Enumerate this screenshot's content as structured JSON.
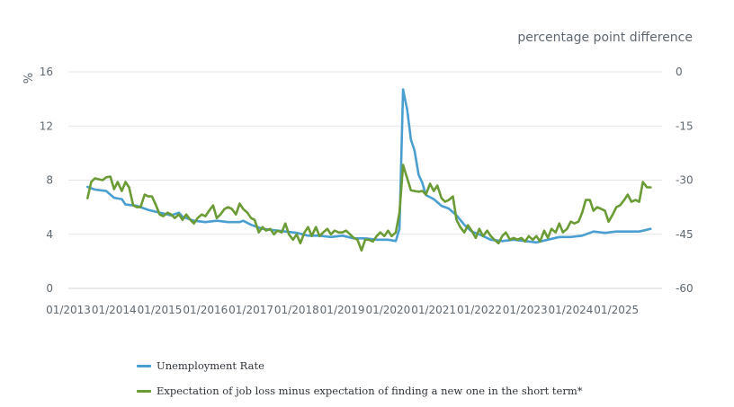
{
  "chart_data": {
    "type": "line",
    "title": "",
    "left_axis": {
      "label": "%",
      "min": 0,
      "max": 16,
      "ticks": [
        0,
        4,
        8,
        12,
        16
      ]
    },
    "right_axis": {
      "label": "percentage point difference",
      "min": -60,
      "max": 0,
      "ticks": [
        0,
        -15,
        -30,
        -45,
        -60
      ]
    },
    "x_axis": {
      "start": 2013.0,
      "end": 2026.0,
      "tick_positions": [
        2013,
        2014,
        2015,
        2016,
        2017,
        2018,
        2019,
        2020,
        2021,
        2022,
        2023,
        2024,
        2025
      ],
      "tick_labels": [
        "01/2013",
        "01/2014",
        "01/2015",
        "01/2016",
        "01/2017",
        "01/2018",
        "01/2019",
        "01/2020",
        "01/2021",
        "01/2022",
        "01/2023",
        "01/2024",
        "01/2025"
      ]
    },
    "series": [
      {
        "name": "Unemployment Rate",
        "axis": "left",
        "color": "#4a9fd0",
        "points": [
          [
            2013.42,
            7.5
          ],
          [
            2013.58,
            7.3
          ],
          [
            2013.83,
            7.2
          ],
          [
            2014.0,
            6.7
          ],
          [
            2014.17,
            6.6
          ],
          [
            2014.25,
            6.2
          ],
          [
            2014.5,
            6.1
          ],
          [
            2014.75,
            5.8
          ],
          [
            2015.0,
            5.6
          ],
          [
            2015.25,
            5.4
          ],
          [
            2015.42,
            5.6
          ],
          [
            2015.5,
            5.3
          ],
          [
            2015.75,
            5.0
          ],
          [
            2016.0,
            4.9
          ],
          [
            2016.25,
            5.0
          ],
          [
            2016.5,
            4.9
          ],
          [
            2016.75,
            4.9
          ],
          [
            2016.83,
            5.0
          ],
          [
            2017.0,
            4.7
          ],
          [
            2017.25,
            4.4
          ],
          [
            2017.5,
            4.3
          ],
          [
            2017.75,
            4.2
          ],
          [
            2018.0,
            4.1
          ],
          [
            2018.25,
            3.9
          ],
          [
            2018.5,
            3.9
          ],
          [
            2018.75,
            3.8
          ],
          [
            2019.0,
            3.9
          ],
          [
            2019.25,
            3.7
          ],
          [
            2019.5,
            3.7
          ],
          [
            2019.75,
            3.6
          ],
          [
            2020.0,
            3.6
          ],
          [
            2020.17,
            3.5
          ],
          [
            2020.25,
            4.4
          ],
          [
            2020.33,
            14.7
          ],
          [
            2020.42,
            13.2
          ],
          [
            2020.5,
            11.0
          ],
          [
            2020.58,
            10.2
          ],
          [
            2020.67,
            8.4
          ],
          [
            2020.75,
            7.8
          ],
          [
            2020.83,
            6.9
          ],
          [
            2021.0,
            6.6
          ],
          [
            2021.17,
            6.1
          ],
          [
            2021.33,
            5.9
          ],
          [
            2021.5,
            5.4
          ],
          [
            2021.67,
            4.7
          ],
          [
            2021.83,
            4.2
          ],
          [
            2022.0,
            4.0
          ],
          [
            2022.25,
            3.6
          ],
          [
            2022.5,
            3.5
          ],
          [
            2022.75,
            3.6
          ],
          [
            2023.0,
            3.5
          ],
          [
            2023.25,
            3.4
          ],
          [
            2023.5,
            3.6
          ],
          [
            2023.75,
            3.8
          ],
          [
            2024.0,
            3.8
          ],
          [
            2024.25,
            3.9
          ],
          [
            2024.5,
            4.2
          ],
          [
            2024.75,
            4.1
          ],
          [
            2025.0,
            4.2
          ],
          [
            2025.25,
            4.2
          ],
          [
            2025.5,
            4.2
          ],
          [
            2025.75,
            4.4
          ]
        ]
      },
      {
        "name": "Expectation of job loss minus expectation of finding a new one in the short term*",
        "axis": "right",
        "color": "#6a9b34",
        "points": [
          [
            2013.42,
            -35
          ],
          [
            2013.5,
            -30.5
          ],
          [
            2013.58,
            -29.5
          ],
          [
            2013.75,
            -30
          ],
          [
            2013.83,
            -29.2
          ],
          [
            2013.92,
            -29
          ],
          [
            2014.0,
            -32.5
          ],
          [
            2014.08,
            -30.5
          ],
          [
            2014.17,
            -33
          ],
          [
            2014.25,
            -30.5
          ],
          [
            2014.33,
            -32
          ],
          [
            2014.42,
            -37
          ],
          [
            2014.5,
            -37.5
          ],
          [
            2014.58,
            -37.5
          ],
          [
            2014.67,
            -34
          ],
          [
            2014.75,
            -34.5
          ],
          [
            2014.83,
            -34.5
          ],
          [
            2014.92,
            -37
          ],
          [
            2015.0,
            -39.5
          ],
          [
            2015.08,
            -40
          ],
          [
            2015.17,
            -39
          ],
          [
            2015.25,
            -39.5
          ],
          [
            2015.33,
            -40.5
          ],
          [
            2015.42,
            -39.5
          ],
          [
            2015.5,
            -41
          ],
          [
            2015.58,
            -39.5
          ],
          [
            2015.67,
            -41
          ],
          [
            2015.75,
            -42
          ],
          [
            2015.83,
            -40.5
          ],
          [
            2015.92,
            -39.5
          ],
          [
            2016.0,
            -40
          ],
          [
            2016.08,
            -38.5
          ],
          [
            2016.17,
            -37
          ],
          [
            2016.25,
            -40.5
          ],
          [
            2016.33,
            -39.5
          ],
          [
            2016.42,
            -38
          ],
          [
            2016.5,
            -37.5
          ],
          [
            2016.58,
            -38
          ],
          [
            2016.67,
            -39.5
          ],
          [
            2016.75,
            -36.5
          ],
          [
            2016.83,
            -38
          ],
          [
            2016.92,
            -39
          ],
          [
            2017.0,
            -40.5
          ],
          [
            2017.08,
            -41
          ],
          [
            2017.17,
            -44.5
          ],
          [
            2017.25,
            -43
          ],
          [
            2017.33,
            -44
          ],
          [
            2017.42,
            -43.5
          ],
          [
            2017.5,
            -45
          ],
          [
            2017.58,
            -44
          ],
          [
            2017.67,
            -44.5
          ],
          [
            2017.75,
            -42
          ],
          [
            2017.83,
            -45
          ],
          [
            2017.92,
            -46.5
          ],
          [
            2018.0,
            -45
          ],
          [
            2018.08,
            -47.5
          ],
          [
            2018.17,
            -44.5
          ],
          [
            2018.25,
            -43
          ],
          [
            2018.33,
            -45.5
          ],
          [
            2018.42,
            -43
          ],
          [
            2018.5,
            -45.5
          ],
          [
            2018.58,
            -44.5
          ],
          [
            2018.67,
            -43.5
          ],
          [
            2018.75,
            -45
          ],
          [
            2018.83,
            -44
          ],
          [
            2018.92,
            -44.5
          ],
          [
            2019.0,
            -44.5
          ],
          [
            2019.08,
            -44
          ],
          [
            2019.17,
            -45
          ],
          [
            2019.25,
            -46
          ],
          [
            2019.33,
            -46.5
          ],
          [
            2019.42,
            -49.5
          ],
          [
            2019.5,
            -46.5
          ],
          [
            2019.58,
            -46.5
          ],
          [
            2019.67,
            -47
          ],
          [
            2019.75,
            -45.5
          ],
          [
            2019.83,
            -44.5
          ],
          [
            2019.92,
            -45.5
          ],
          [
            2020.0,
            -44
          ],
          [
            2020.08,
            -45.5
          ],
          [
            2020.17,
            -44.5
          ],
          [
            2020.25,
            -39
          ],
          [
            2020.33,
            -25.8
          ],
          [
            2020.42,
            -29.5
          ],
          [
            2020.5,
            -32.8
          ],
          [
            2020.58,
            -33
          ],
          [
            2020.67,
            -33.2
          ],
          [
            2020.75,
            -33
          ],
          [
            2020.83,
            -34
          ],
          [
            2020.92,
            -31
          ],
          [
            2021.0,
            -33
          ],
          [
            2021.08,
            -31.5
          ],
          [
            2021.17,
            -35
          ],
          [
            2021.25,
            -36
          ],
          [
            2021.33,
            -35.5
          ],
          [
            2021.42,
            -34.5
          ],
          [
            2021.5,
            -41
          ],
          [
            2021.58,
            -43
          ],
          [
            2021.67,
            -44.5
          ],
          [
            2021.75,
            -42.5
          ],
          [
            2021.83,
            -44
          ],
          [
            2021.92,
            -46
          ],
          [
            2022.0,
            -43.5
          ],
          [
            2022.08,
            -45.5
          ],
          [
            2022.17,
            -44
          ],
          [
            2022.25,
            -45.5
          ],
          [
            2022.33,
            -46.5
          ],
          [
            2022.42,
            -47.5
          ],
          [
            2022.5,
            -45.5
          ],
          [
            2022.58,
            -44.5
          ],
          [
            2022.67,
            -46.5
          ],
          [
            2022.75,
            -46
          ],
          [
            2022.83,
            -46.5
          ],
          [
            2022.92,
            -46
          ],
          [
            2023.0,
            -47
          ],
          [
            2023.08,
            -45.5
          ],
          [
            2023.17,
            -46.5
          ],
          [
            2023.25,
            -45.5
          ],
          [
            2023.33,
            -47
          ],
          [
            2023.42,
            -44
          ],
          [
            2023.5,
            -46
          ],
          [
            2023.58,
            -43.5
          ],
          [
            2023.67,
            -44.5
          ],
          [
            2023.75,
            -42
          ],
          [
            2023.83,
            -44.5
          ],
          [
            2023.92,
            -43.5
          ],
          [
            2024.0,
            -41.5
          ],
          [
            2024.08,
            -42
          ],
          [
            2024.17,
            -41.5
          ],
          [
            2024.25,
            -39
          ],
          [
            2024.33,
            -35.5
          ],
          [
            2024.42,
            -35.5
          ],
          [
            2024.5,
            -38.5
          ],
          [
            2024.58,
            -37.5
          ],
          [
            2024.67,
            -38
          ],
          [
            2024.75,
            -38.5
          ],
          [
            2024.83,
            -41.5
          ],
          [
            2024.92,
            -39.5
          ],
          [
            2025.0,
            -37.5
          ],
          [
            2025.08,
            -37
          ],
          [
            2025.17,
            -35.5
          ],
          [
            2025.25,
            -34
          ],
          [
            2025.33,
            -36
          ],
          [
            2025.42,
            -35.5
          ],
          [
            2025.5,
            -36
          ],
          [
            2025.58,
            -30.5
          ],
          [
            2025.67,
            -32
          ],
          [
            2025.75,
            -32
          ]
        ]
      }
    ],
    "legend_position": "bottom-left"
  }
}
